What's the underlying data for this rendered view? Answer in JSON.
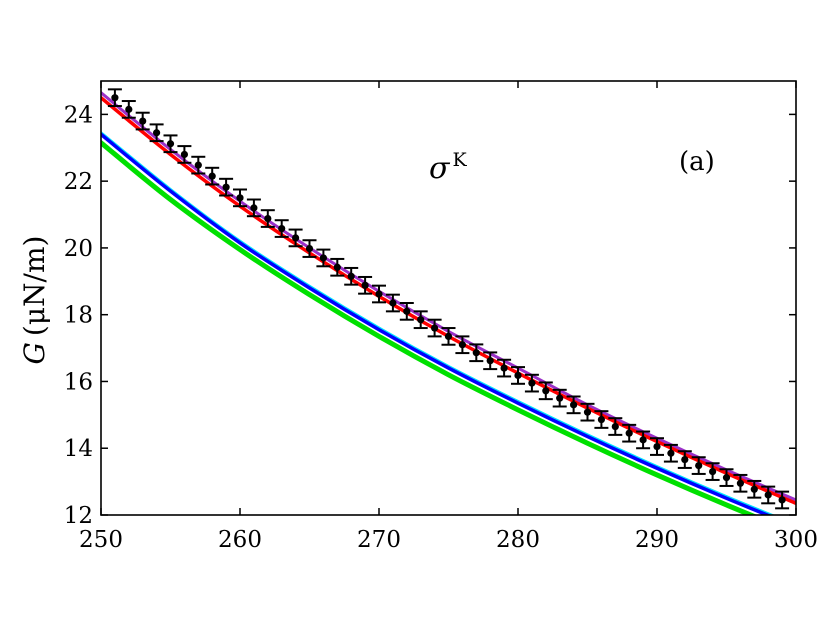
{
  "chart_data": {
    "type": "line",
    "title": "",
    "xlabel": "",
    "ylabel": "G (μN/m)",
    "ylabel_parts": {
      "symbol": "G",
      "unit": "(μN/m)"
    },
    "annotations": {
      "sigma_symbol": "σ",
      "sigma_superscript": "K",
      "panel_label": "(a)"
    },
    "xlim": [
      250,
      300
    ],
    "ylim": [
      12,
      25
    ],
    "grid": false,
    "legend": "none",
    "x_ticks": [
      250,
      260,
      270,
      280,
      290,
      300
    ],
    "y_ticks": [
      12,
      14,
      16,
      18,
      20,
      22,
      24
    ],
    "series": [
      {
        "color": "#9b30c8",
        "width": 3,
        "x": [
          250,
          255,
          260,
          265,
          270,
          275,
          280,
          285,
          290,
          295,
          300
        ],
        "y": [
          24.65,
          22.95,
          21.4,
          20.0,
          18.7,
          17.5,
          16.4,
          15.3,
          14.3,
          13.35,
          12.45
        ]
      },
      {
        "color": "#ff0000",
        "width": 3.5,
        "x": [
          250,
          255,
          260,
          265,
          270,
          275,
          280,
          285,
          290,
          295,
          300
        ],
        "y": [
          24.5,
          22.8,
          21.25,
          19.85,
          18.55,
          17.35,
          16.25,
          15.2,
          14.2,
          13.25,
          12.35
        ]
      },
      {
        "color": "#00e0ff",
        "width": 3,
        "x": [
          250,
          255,
          260,
          265,
          270,
          275,
          280,
          285,
          290,
          295,
          300
        ],
        "y": [
          23.45,
          21.75,
          20.2,
          18.85,
          17.6,
          16.45,
          15.4,
          14.4,
          13.45,
          12.55,
          11.7
        ]
      },
      {
        "color": "#00e000",
        "width": 5,
        "x": [
          250,
          255,
          260,
          265,
          270,
          275,
          280,
          285,
          290,
          295,
          300
        ],
        "y": [
          23.15,
          21.45,
          19.95,
          18.6,
          17.35,
          16.2,
          15.15,
          14.15,
          13.2,
          12.3,
          11.45
        ]
      },
      {
        "color": "#0000ff",
        "width": 3.5,
        "x": [
          250,
          255,
          260,
          265,
          270,
          275,
          280,
          285,
          290,
          295,
          300
        ],
        "y": [
          23.4,
          21.7,
          20.15,
          18.8,
          17.55,
          16.4,
          15.35,
          14.35,
          13.4,
          12.5,
          11.65
        ]
      }
    ],
    "data_points": {
      "color": "#000000",
      "error": 0.25,
      "x": [
        251,
        252,
        253,
        254,
        255,
        256,
        257,
        258,
        259,
        260,
        261,
        262,
        263,
        264,
        265,
        266,
        267,
        268,
        269,
        270,
        271,
        272,
        273,
        274,
        275,
        276,
        277,
        278,
        279,
        280,
        281,
        282,
        283,
        284,
        285,
        286,
        287,
        288,
        289,
        290,
        291,
        292,
        293,
        294,
        295,
        296,
        297,
        298,
        299
      ],
      "y": [
        24.5,
        24.15,
        23.8,
        23.45,
        23.12,
        22.8,
        22.48,
        22.15,
        21.82,
        21.5,
        21.2,
        20.88,
        20.58,
        20.3,
        19.98,
        19.7,
        19.42,
        19.15,
        18.88,
        18.62,
        18.35,
        18.1,
        17.85,
        17.6,
        17.35,
        17.1,
        16.86,
        16.62,
        16.4,
        16.18,
        15.95,
        15.72,
        15.5,
        15.3,
        15.08,
        14.86,
        14.65,
        14.45,
        14.25,
        14.05,
        13.85,
        13.66,
        13.48,
        13.3,
        13.12,
        12.95,
        12.77,
        12.6,
        12.45
      ]
    }
  }
}
